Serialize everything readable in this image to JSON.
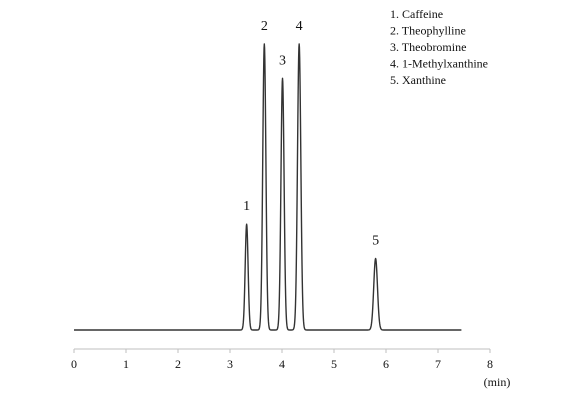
{
  "chart_data": {
    "type": "line",
    "title": "",
    "xlabel": "(min)",
    "ylabel": "",
    "xlim": [
      0,
      8
    ],
    "xticks": [
      "0",
      "1",
      "2",
      "3",
      "4",
      "5",
      "6",
      "7",
      "8"
    ],
    "grid": false,
    "legend_position": "top-right",
    "series_color": "#333333",
    "baseline_end": 7.45,
    "peaks": [
      {
        "label": "1",
        "name": "Caffeine",
        "rt": 3.32,
        "height": 0.37,
        "width": 0.028
      },
      {
        "label": "2",
        "name": "Theophylline",
        "rt": 3.66,
        "height": 1.0,
        "width": 0.03
      },
      {
        "label": "3",
        "name": "Theobromine",
        "rt": 4.01,
        "height": 0.88,
        "width": 0.03
      },
      {
        "label": "4",
        "name": "1-Methylxanthine",
        "rt": 4.33,
        "height": 1.0,
        "width": 0.032
      },
      {
        "label": "5",
        "name": "Xanthine",
        "rt": 5.8,
        "height": 0.25,
        "width": 0.036
      }
    ],
    "legend": [
      "1. Caffeine",
      "2. Theophylline",
      "3. Theobromine",
      "4. 1-Methylxanthine",
      "5. Xanthine"
    ]
  }
}
